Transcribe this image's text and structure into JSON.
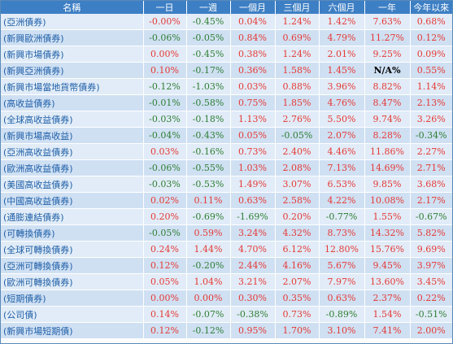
{
  "table": {
    "headers": [
      "名稱",
      "一日",
      "一週",
      "一個月",
      "三個月",
      "六個月",
      "一年",
      "今年以來"
    ],
    "rows": [
      {
        "name": "亞洲債券",
        "values": [
          "-0.00%",
          "-0.45%",
          "0.04%",
          "1.24%",
          "1.42%",
          "7.63%",
          "0.68%"
        ],
        "signs": [
          "neu",
          "neg",
          "pos",
          "pos",
          "pos",
          "pos",
          "pos"
        ]
      },
      {
        "name": "新興歐洲債券",
        "values": [
          "-0.06%",
          "-0.05%",
          "0.84%",
          "0.69%",
          "4.79%",
          "11.27%",
          "0.12%"
        ],
        "signs": [
          "neg",
          "neg",
          "pos",
          "pos",
          "pos",
          "pos",
          "pos"
        ]
      },
      {
        "name": "新興市場債券",
        "values": [
          "0.00%",
          "-0.45%",
          "0.38%",
          "1.24%",
          "2.01%",
          "9.25%",
          "0.09%"
        ],
        "signs": [
          "pos",
          "neg",
          "pos",
          "pos",
          "pos",
          "pos",
          "pos"
        ]
      },
      {
        "name": "新興亞洲債券",
        "values": [
          "0.10%",
          "-0.17%",
          "0.36%",
          "1.58%",
          "1.45%",
          "N/A%",
          "0.55%"
        ],
        "signs": [
          "pos",
          "neg",
          "pos",
          "pos",
          "pos",
          "na",
          "pos"
        ]
      },
      {
        "name": "新興市場當地貨幣債券",
        "values": [
          "-0.12%",
          "-1.03%",
          "0.03%",
          "0.88%",
          "3.96%",
          "8.82%",
          "1.14%"
        ],
        "signs": [
          "neg",
          "neg",
          "pos",
          "pos",
          "pos",
          "pos",
          "pos"
        ]
      },
      {
        "name": "高收益債券",
        "values": [
          "-0.01%",
          "-0.58%",
          "0.75%",
          "1.85%",
          "4.76%",
          "8.47%",
          "2.13%"
        ],
        "signs": [
          "neg",
          "neg",
          "pos",
          "pos",
          "pos",
          "pos",
          "pos"
        ]
      },
      {
        "name": "全球高收益債券",
        "values": [
          "-0.03%",
          "-0.18%",
          "1.13%",
          "2.76%",
          "5.50%",
          "9.74%",
          "3.26%"
        ],
        "signs": [
          "neg",
          "neg",
          "pos",
          "pos",
          "pos",
          "pos",
          "pos"
        ]
      },
      {
        "name": "新興市場高收益",
        "values": [
          "-0.04%",
          "-0.43%",
          "0.05%",
          "-0.05%",
          "2.07%",
          "8.28%",
          "-0.34%"
        ],
        "signs": [
          "neg",
          "neg",
          "pos",
          "neg",
          "pos",
          "pos",
          "neg"
        ]
      },
      {
        "name": "亞洲高收益債券",
        "values": [
          "0.03%",
          "-0.16%",
          "0.73%",
          "2.40%",
          "4.46%",
          "11.86%",
          "2.27%"
        ],
        "signs": [
          "pos",
          "neg",
          "pos",
          "pos",
          "pos",
          "pos",
          "pos"
        ]
      },
      {
        "name": "歐洲高收益債券",
        "values": [
          "-0.06%",
          "-0.55%",
          "1.03%",
          "2.08%",
          "7.13%",
          "14.69%",
          "2.71%"
        ],
        "signs": [
          "neg",
          "neg",
          "pos",
          "pos",
          "pos",
          "pos",
          "pos"
        ]
      },
      {
        "name": "美國高收益債券",
        "values": [
          "-0.03%",
          "-0.53%",
          "1.49%",
          "3.07%",
          "6.53%",
          "9.85%",
          "3.68%"
        ],
        "signs": [
          "neg",
          "neg",
          "pos",
          "pos",
          "pos",
          "pos",
          "pos"
        ]
      },
      {
        "name": "中國高收益債券",
        "values": [
          "0.02%",
          "0.11%",
          "0.63%",
          "2.58%",
          "4.22%",
          "10.08%",
          "2.17%"
        ],
        "signs": [
          "pos",
          "pos",
          "pos",
          "pos",
          "pos",
          "pos",
          "pos"
        ]
      },
      {
        "name": "通膨連結債券",
        "values": [
          "0.20%",
          "-0.69%",
          "-1.69%",
          "0.20%",
          "-0.77%",
          "1.55%",
          "-0.67%"
        ],
        "signs": [
          "pos",
          "neg",
          "neg",
          "pos",
          "neg",
          "pos",
          "neg"
        ]
      },
      {
        "name": "可轉換債券",
        "values": [
          "-0.05%",
          "0.59%",
          "3.24%",
          "4.32%",
          "8.73%",
          "14.32%",
          "5.82%"
        ],
        "signs": [
          "neg",
          "pos",
          "pos",
          "pos",
          "pos",
          "pos",
          "pos"
        ]
      },
      {
        "name": "全球可轉換債券",
        "values": [
          "0.24%",
          "1.44%",
          "4.70%",
          "6.12%",
          "12.80%",
          "15.76%",
          "9.69%"
        ],
        "signs": [
          "pos",
          "pos",
          "pos",
          "pos",
          "pos",
          "pos",
          "pos"
        ]
      },
      {
        "name": "亞洲可轉換債券",
        "values": [
          "0.12%",
          "-0.20%",
          "2.44%",
          "4.16%",
          "5.67%",
          "9.45%",
          "3.97%"
        ],
        "signs": [
          "pos",
          "neg",
          "pos",
          "pos",
          "pos",
          "pos",
          "pos"
        ]
      },
      {
        "name": "歐洲可轉換債券",
        "values": [
          "0.05%",
          "1.04%",
          "3.21%",
          "2.07%",
          "7.97%",
          "13.60%",
          "3.45%"
        ],
        "signs": [
          "pos",
          "pos",
          "pos",
          "pos",
          "pos",
          "pos",
          "pos"
        ]
      },
      {
        "name": "短期債券",
        "values": [
          "0.00%",
          "0.00%",
          "0.30%",
          "0.35%",
          "0.63%",
          "2.37%",
          "0.22%"
        ],
        "signs": [
          "pos",
          "pos",
          "pos",
          "pos",
          "pos",
          "pos",
          "pos"
        ]
      },
      {
        "name": "公司債",
        "values": [
          "0.14%",
          "-0.07%",
          "-0.38%",
          "0.73%",
          "-0.89%",
          "1.54%",
          "-0.51%"
        ],
        "signs": [
          "pos",
          "neg",
          "neg",
          "pos",
          "neg",
          "pos",
          "neg"
        ]
      },
      {
        "name": "新興市場短期債",
        "values": [
          "0.12%",
          "-0.12%",
          "0.95%",
          "1.70%",
          "3.10%",
          "7.41%",
          "2.00%"
        ],
        "signs": [
          "pos",
          "neg",
          "pos",
          "pos",
          "pos",
          "pos",
          "pos"
        ]
      }
    ]
  },
  "colors": {
    "header_bg": "#3d7fc4",
    "row_odd": "#e1ecf8",
    "row_even": "#cfe0f3",
    "positive": "#e53935",
    "negative": "#2e7d32",
    "link": "#1f5fa8"
  }
}
